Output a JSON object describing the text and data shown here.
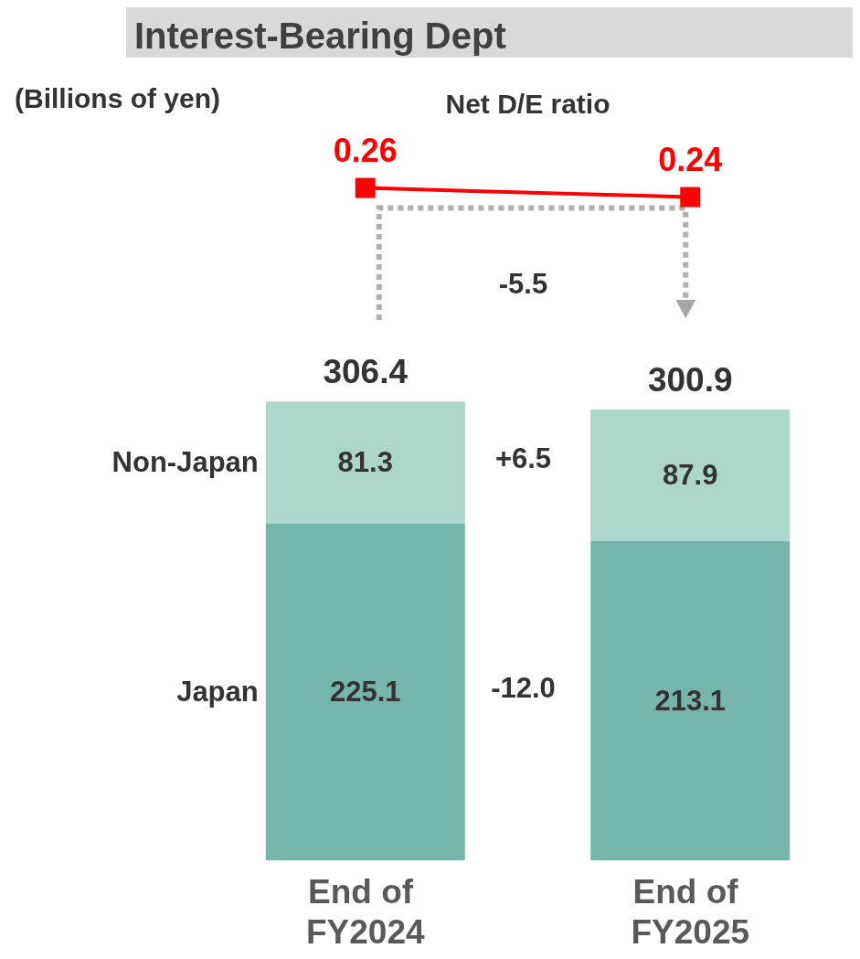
{
  "chart_data": [
    {
      "type": "line",
      "title": "Interest-Bearing Dept",
      "categories": [
        "End of FY2024",
        "End of FY2025"
      ],
      "data_labels": true,
      "legend": false,
      "grid": false,
      "tick_labels": false,
      "marker": "square",
      "series": [
        {
          "name": "Net D/E ratio",
          "color": "#ff0000",
          "values": [
            0.26,
            0.24
          ]
        }
      ],
      "annotations": [
        "(Billions of yen)",
        "-5.5"
      ]
    },
    {
      "type": "bar",
      "categories": [
        "End of FY2024",
        "End of FY2025"
      ],
      "stacked": true,
      "data_labels": true,
      "legend": false,
      "grid": false,
      "tick_labels": "x",
      "series": [
        {
          "name": "Japan",
          "color": "#75b5aa",
          "values": [
            225.1,
            213.1
          ]
        },
        {
          "name": "Non-Japan",
          "color": "#acd5cb",
          "values": [
            81.3,
            87.9
          ]
        }
      ],
      "totals": [
        "306.4",
        "300.9"
      ],
      "annotations": [
        "+6.5",
        "-12.0"
      ]
    }
  ]
}
